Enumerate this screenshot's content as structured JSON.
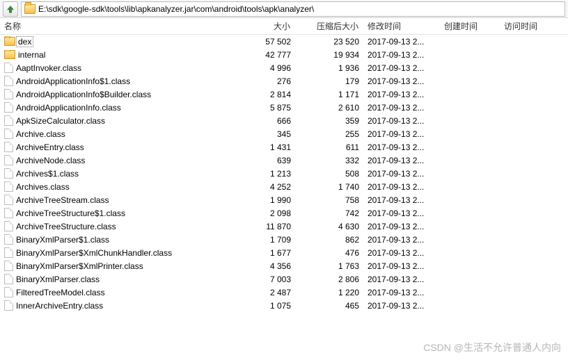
{
  "address_path": "E:\\sdk\\google-sdk\\tools\\lib\\apkanalyzer.jar\\com\\android\\tools\\apk\\analyzer\\",
  "columns": {
    "name": "名称",
    "size": "大小",
    "packed": "压缩后大小",
    "mtime": "修改时间",
    "ctime": "创建时间",
    "atime": "访问时间"
  },
  "rows": [
    {
      "type": "folder",
      "selected": true,
      "name": "dex",
      "size": "57 502",
      "packed": "23 520",
      "mtime": "2017-09-13 2..."
    },
    {
      "type": "folder",
      "selected": false,
      "name": "internal",
      "size": "42 777",
      "packed": "19 934",
      "mtime": "2017-09-13 2..."
    },
    {
      "type": "file",
      "selected": false,
      "name": "AaptInvoker.class",
      "size": "4 996",
      "packed": "1 936",
      "mtime": "2017-09-13 2..."
    },
    {
      "type": "file",
      "selected": false,
      "name": "AndroidApplicationInfo$1.class",
      "size": "276",
      "packed": "179",
      "mtime": "2017-09-13 2..."
    },
    {
      "type": "file",
      "selected": false,
      "name": "AndroidApplicationInfo$Builder.class",
      "size": "2 814",
      "packed": "1 171",
      "mtime": "2017-09-13 2..."
    },
    {
      "type": "file",
      "selected": false,
      "name": "AndroidApplicationInfo.class",
      "size": "5 875",
      "packed": "2 610",
      "mtime": "2017-09-13 2..."
    },
    {
      "type": "file",
      "selected": false,
      "name": "ApkSizeCalculator.class",
      "size": "666",
      "packed": "359",
      "mtime": "2017-09-13 2..."
    },
    {
      "type": "file",
      "selected": false,
      "name": "Archive.class",
      "size": "345",
      "packed": "255",
      "mtime": "2017-09-13 2..."
    },
    {
      "type": "file",
      "selected": false,
      "name": "ArchiveEntry.class",
      "size": "1 431",
      "packed": "611",
      "mtime": "2017-09-13 2..."
    },
    {
      "type": "file",
      "selected": false,
      "name": "ArchiveNode.class",
      "size": "639",
      "packed": "332",
      "mtime": "2017-09-13 2..."
    },
    {
      "type": "file",
      "selected": false,
      "name": "Archives$1.class",
      "size": "1 213",
      "packed": "508",
      "mtime": "2017-09-13 2..."
    },
    {
      "type": "file",
      "selected": false,
      "name": "Archives.class",
      "size": "4 252",
      "packed": "1 740",
      "mtime": "2017-09-13 2..."
    },
    {
      "type": "file",
      "selected": false,
      "name": "ArchiveTreeStream.class",
      "size": "1 990",
      "packed": "758",
      "mtime": "2017-09-13 2..."
    },
    {
      "type": "file",
      "selected": false,
      "name": "ArchiveTreeStructure$1.class",
      "size": "2 098",
      "packed": "742",
      "mtime": "2017-09-13 2..."
    },
    {
      "type": "file",
      "selected": false,
      "name": "ArchiveTreeStructure.class",
      "size": "11 870",
      "packed": "4 630",
      "mtime": "2017-09-13 2..."
    },
    {
      "type": "file",
      "selected": false,
      "name": "BinaryXmlParser$1.class",
      "size": "1 709",
      "packed": "862",
      "mtime": "2017-09-13 2..."
    },
    {
      "type": "file",
      "selected": false,
      "name": "BinaryXmlParser$XmlChunkHandler.class",
      "size": "1 677",
      "packed": "476",
      "mtime": "2017-09-13 2..."
    },
    {
      "type": "file",
      "selected": false,
      "name": "BinaryXmlParser$XmlPrinter.class",
      "size": "4 356",
      "packed": "1 763",
      "mtime": "2017-09-13 2..."
    },
    {
      "type": "file",
      "selected": false,
      "name": "BinaryXmlParser.class",
      "size": "7 003",
      "packed": "2 806",
      "mtime": "2017-09-13 2..."
    },
    {
      "type": "file",
      "selected": false,
      "name": "FilteredTreeModel.class",
      "size": "2 487",
      "packed": "1 220",
      "mtime": "2017-09-13 2..."
    },
    {
      "type": "file",
      "selected": false,
      "name": "InnerArchiveEntry.class",
      "size": "1 075",
      "packed": "465",
      "mtime": "2017-09-13 2..."
    }
  ],
  "watermark": "CSDN @生活不允许普通人内向"
}
